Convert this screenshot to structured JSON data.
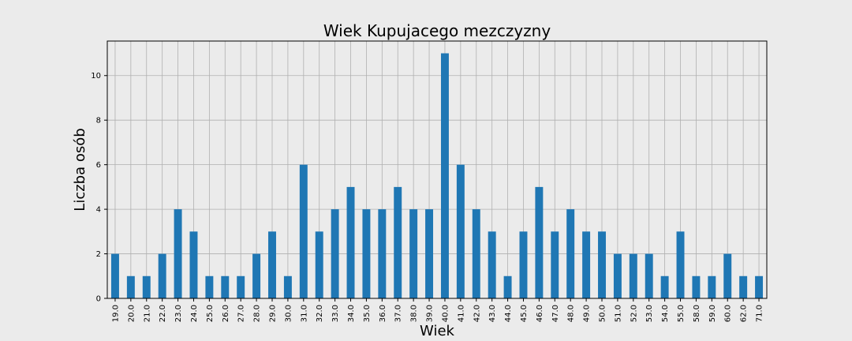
{
  "chart_data": {
    "type": "bar",
    "title": "Wiek Kupujacego mezczyzny",
    "xlabel": "Wiek",
    "ylabel": "Liczba osób",
    "categories": [
      "19.0",
      "20.0",
      "21.0",
      "22.0",
      "23.0",
      "24.0",
      "25.0",
      "26.0",
      "27.0",
      "28.0",
      "29.0",
      "30.0",
      "31.0",
      "32.0",
      "33.0",
      "34.0",
      "35.0",
      "36.0",
      "37.0",
      "38.0",
      "39.0",
      "40.0",
      "41.0",
      "42.0",
      "43.0",
      "44.0",
      "45.0",
      "46.0",
      "47.0",
      "48.0",
      "49.0",
      "50.0",
      "51.0",
      "52.0",
      "53.0",
      "54.0",
      "55.0",
      "58.0",
      "59.0",
      "60.0",
      "62.0",
      "71.0"
    ],
    "values": [
      2,
      1,
      1,
      2,
      4,
      3,
      1,
      1,
      1,
      2,
      3,
      1,
      6,
      3,
      4,
      5,
      4,
      4,
      5,
      4,
      4,
      11,
      6,
      4,
      3,
      1,
      3,
      5,
      3,
      4,
      3,
      3,
      2,
      2,
      2,
      1,
      3,
      1,
      1,
      2,
      1,
      1
    ],
    "ylim": [
      0,
      11.55
    ],
    "yticks": [
      "0",
      "2",
      "4",
      "6",
      "8",
      "10"
    ],
    "grid": true,
    "bar_color": "#1f77b4",
    "background_color": "#ebebeb",
    "grid_color": "#b0b0b0"
  }
}
